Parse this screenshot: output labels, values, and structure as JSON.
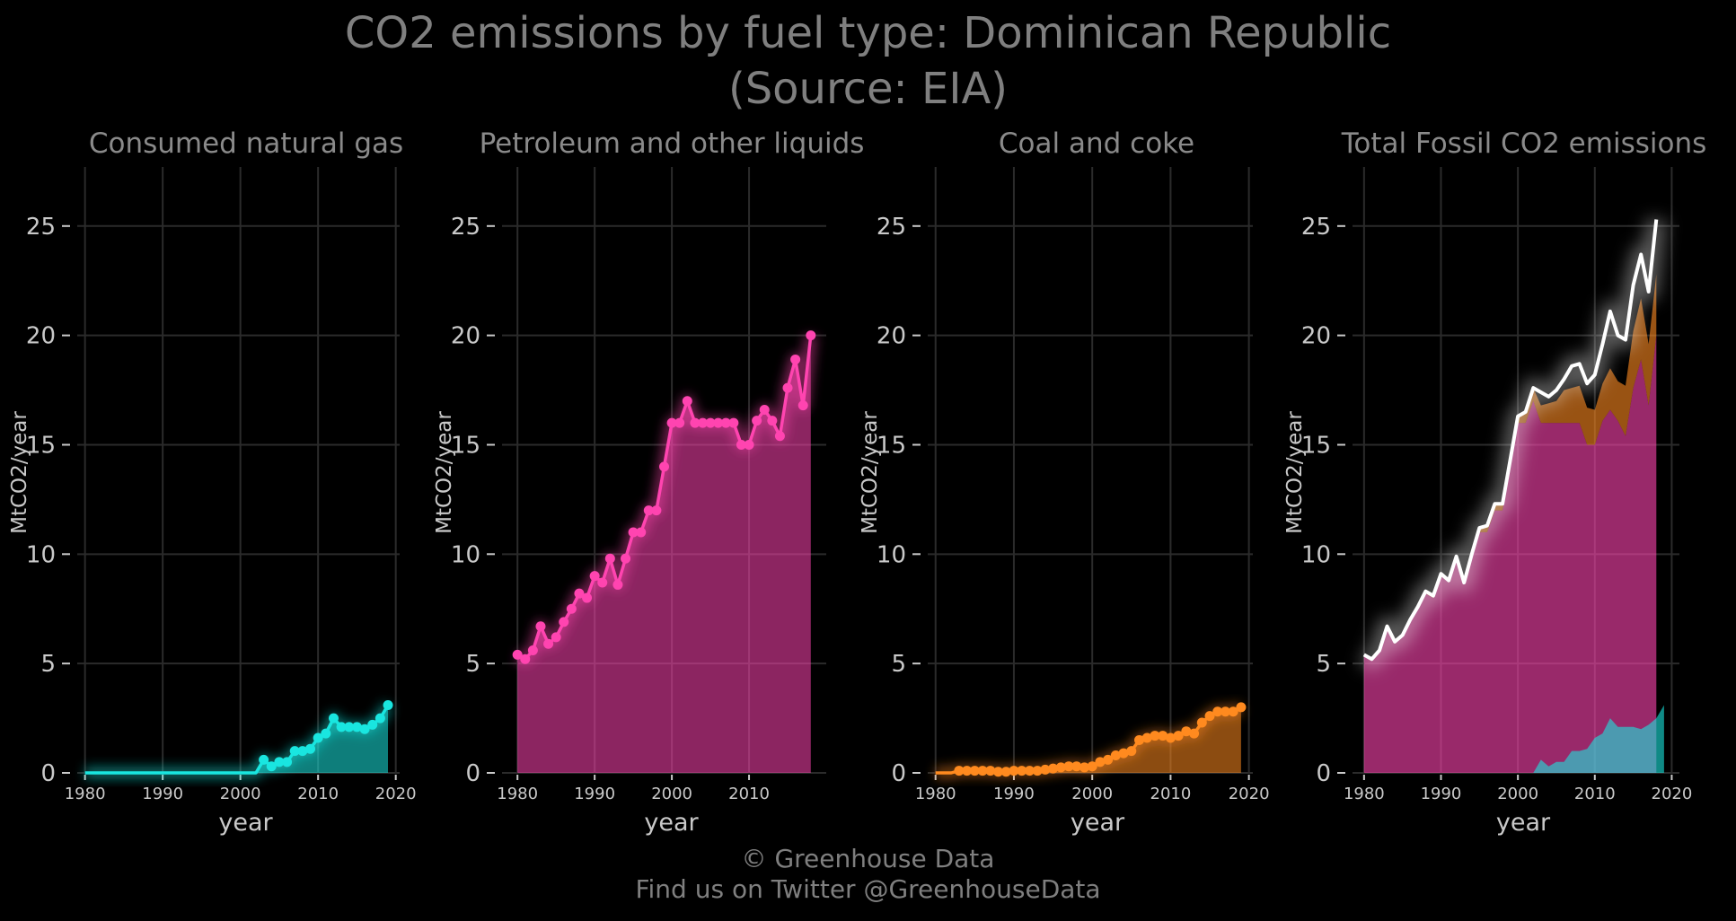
{
  "title_line1": "CO2 emissions by fuel type: Dominican Republic",
  "title_line2": "(Source: EIA)",
  "footer_line1": "© Greenhouse Data",
  "footer_line2": "Find us on Twitter @GreenhouseData",
  "colors": {
    "background": "#000000",
    "gas": "#19e6e0",
    "petroleum": "#ff44b0",
    "coal": "#ff8a1f",
    "total_line": "#ffffff",
    "grid": "#2b2b2b"
  },
  "chart_data": [
    {
      "type": "area",
      "title": "Consumed natural gas",
      "xlabel": "year",
      "ylabel": "MtCO2/year",
      "xlim": [
        1979,
        2020.5
      ],
      "ylim": [
        0,
        27.7
      ],
      "xticks": [
        1980,
        1990,
        2000,
        2010,
        2020
      ],
      "yticks": [
        0,
        5,
        10,
        15,
        20,
        25
      ],
      "grid": true,
      "series": [
        {
          "x": [
            1980,
            1981,
            1982,
            1983,
            1984,
            1985,
            1986,
            1987,
            1988,
            1989,
            1990,
            1991,
            1992,
            1993,
            1994,
            1995,
            1996,
            1997,
            1998,
            1999,
            2000,
            2001,
            2002,
            2003,
            2004,
            2005,
            2006,
            2007,
            2008,
            2009,
            2010,
            2011,
            2012,
            2013,
            2014,
            2015,
            2016,
            2017,
            2018,
            2019
          ],
          "values": [
            0,
            0,
            0,
            0,
            0,
            0,
            0,
            0,
            0,
            0,
            0,
            0,
            0,
            0,
            0,
            0,
            0,
            0,
            0,
            0,
            0,
            0,
            0,
            0.6,
            0.3,
            0.5,
            0.5,
            1.0,
            1.0,
            1.1,
            1.6,
            1.8,
            2.5,
            2.1,
            2.1,
            2.1,
            2.0,
            2.2,
            2.5,
            3.1
          ],
          "markers_from": 2003
        }
      ]
    },
    {
      "type": "area",
      "title": "Petroleum and other liquids",
      "xlabel": "year",
      "ylabel": "MtCO2/year",
      "xlim": [
        1978,
        2020
      ],
      "ylim": [
        0,
        27.7
      ],
      "xticks": [
        1980,
        1990,
        2000,
        2010
      ],
      "yticks": [
        0,
        5,
        10,
        15,
        20,
        25
      ],
      "grid": true,
      "series": [
        {
          "x": [
            1980,
            1981,
            1982,
            1983,
            1984,
            1985,
            1986,
            1987,
            1988,
            1989,
            1990,
            1991,
            1992,
            1993,
            1994,
            1995,
            1996,
            1997,
            1998,
            1999,
            2000,
            2001,
            2002,
            2003,
            2004,
            2005,
            2006,
            2007,
            2008,
            2009,
            2010,
            2011,
            2012,
            2013,
            2014,
            2015,
            2016,
            2017,
            2018
          ],
          "values": [
            5.4,
            5.2,
            5.6,
            6.7,
            5.9,
            6.2,
            6.9,
            7.5,
            8.2,
            8.0,
            9.0,
            8.7,
            9.8,
            8.6,
            9.8,
            11.0,
            11.0,
            12.0,
            12.0,
            14.0,
            16.0,
            16.0,
            17.0,
            16.0,
            16.0,
            16.0,
            16.0,
            16.0,
            16.0,
            15.0,
            15.0,
            16.1,
            16.6,
            16.1,
            15.4,
            17.6,
            18.9,
            16.8,
            20.0
          ],
          "markers_from": 1980
        }
      ]
    },
    {
      "type": "area",
      "title": "Coal and coke",
      "xlabel": "year",
      "ylabel": "MtCO2/year",
      "xlim": [
        1979,
        2020.5
      ],
      "ylim": [
        0,
        27.7
      ],
      "xticks": [
        1980,
        1990,
        2000,
        2010,
        2020
      ],
      "yticks": [
        0,
        5,
        10,
        15,
        20,
        25
      ],
      "grid": true,
      "series": [
        {
          "x": [
            1980,
            1981,
            1982,
            1983,
            1984,
            1985,
            1986,
            1987,
            1988,
            1989,
            1990,
            1991,
            1992,
            1993,
            1994,
            1995,
            1996,
            1997,
            1998,
            1999,
            2000,
            2001,
            2002,
            2003,
            2004,
            2005,
            2006,
            2007,
            2008,
            2009,
            2010,
            2011,
            2012,
            2013,
            2014,
            2015,
            2016,
            2017,
            2018,
            2019
          ],
          "values": [
            0,
            0,
            0,
            0.1,
            0.1,
            0.1,
            0.1,
            0.1,
            0.05,
            0.05,
            0.1,
            0.1,
            0.1,
            0.1,
            0.15,
            0.2,
            0.25,
            0.3,
            0.3,
            0.25,
            0.3,
            0.5,
            0.6,
            0.8,
            0.9,
            1.0,
            1.5,
            1.6,
            1.7,
            1.7,
            1.6,
            1.7,
            1.9,
            1.8,
            2.3,
            2.6,
            2.8,
            2.8,
            2.8,
            3.0
          ],
          "markers_from": 1983
        }
      ]
    },
    {
      "type": "area",
      "title": "Total Fossil CO2 emissions",
      "xlabel": "year",
      "ylabel": "MtCO2/year",
      "xlim": [
        1978.5,
        2021
      ],
      "ylim": [
        0,
        27.7
      ],
      "xticks": [
        1980,
        1990,
        2000,
        2010,
        2020
      ],
      "yticks": [
        0,
        5,
        10,
        15,
        20,
        25
      ],
      "grid": true,
      "stacked_from_panels": true,
      "total": {
        "x": [
          1980,
          1981,
          1982,
          1983,
          1984,
          1985,
          1986,
          1987,
          1988,
          1989,
          1990,
          1991,
          1992,
          1993,
          1994,
          1995,
          1996,
          1997,
          1998,
          1999,
          2000,
          2001,
          2002,
          2003,
          2004,
          2005,
          2006,
          2007,
          2008,
          2009,
          2010,
          2011,
          2012,
          2013,
          2014,
          2015,
          2016,
          2017,
          2018
        ],
        "values": [
          5.4,
          5.2,
          5.6,
          6.7,
          6.0,
          6.3,
          7.0,
          7.6,
          8.3,
          8.1,
          9.1,
          8.8,
          9.9,
          8.7,
          10.0,
          11.2,
          11.3,
          12.3,
          12.3,
          14.3,
          16.3,
          16.5,
          17.6,
          17.4,
          17.2,
          17.5,
          18.0,
          18.6,
          18.7,
          17.8,
          18.2,
          19.6,
          21.1,
          20.0,
          19.8,
          22.3,
          23.7,
          22.0,
          25.3
        ]
      }
    }
  ]
}
